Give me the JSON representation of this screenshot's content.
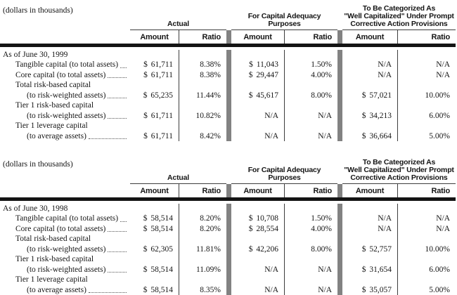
{
  "styles": {
    "rule_color": "#141414",
    "thin_line_color": "#3d3d3d",
    "bar_color": "#828282",
    "text_color": "#151515",
    "leader_color": "#555555"
  },
  "tables": [
    {
      "units_note": "(dollars in thousands)",
      "groups": [
        {
          "title_lines": [
            "Actual"
          ],
          "sub": [
            "Amount",
            "Ratio"
          ]
        },
        {
          "title_lines": [
            "For Capital Adequacy Purposes"
          ],
          "sub": [
            "Amount",
            "Ratio"
          ]
        },
        {
          "title_lines": [
            "To Be Categorized As",
            "\"Well Capitalized\" Under Prompt",
            "Corrective Action Provisions"
          ],
          "sub": [
            "Amount",
            "Ratio"
          ]
        }
      ],
      "rows": [
        {
          "indent": 0,
          "label": "As of June 30, 1999",
          "leader": false,
          "cells": [
            "",
            "",
            "",
            "",
            "",
            ""
          ]
        },
        {
          "indent": 1,
          "label": "Tangible capital (to total assets)",
          "leader": true,
          "cells": [
            "$ 61,711",
            "8.38%",
            "$ 11,043",
            "1.50%",
            "N/A",
            "N/A"
          ]
        },
        {
          "indent": 1,
          "label": "Core capital (to total assets)",
          "leader": true,
          "cells": [
            "$ 61,711",
            "8.38%",
            "$ 29,447",
            "4.00%",
            "N/A",
            "N/A"
          ]
        },
        {
          "indent": 1,
          "label": "Total risk-based capital",
          "leader": false,
          "cells": [
            "",
            "",
            "",
            "",
            "",
            ""
          ]
        },
        {
          "indent": 2,
          "label": "(to risk-weighted assets)",
          "leader": true,
          "cells": [
            "$ 65,235",
            "11.44%",
            "$ 45,617",
            "8.00%",
            "$ 57,021",
            "10.00%"
          ]
        },
        {
          "indent": 1,
          "label": "Tier 1 risk-based capital",
          "leader": false,
          "cells": [
            "",
            "",
            "",
            "",
            "",
            ""
          ]
        },
        {
          "indent": 2,
          "label": "(to risk-weighted assets)",
          "leader": true,
          "cells": [
            "$ 61,711",
            "10.82%",
            "N/A",
            "N/A",
            "$ 34,213",
            "6.00%"
          ]
        },
        {
          "indent": 1,
          "label": "Tier 1 leverage capital",
          "leader": false,
          "cells": [
            "",
            "",
            "",
            "",
            "",
            ""
          ]
        },
        {
          "indent": 2,
          "label": "(to average assets)",
          "leader": true,
          "cells": [
            "$ 61,711",
            "8.42%",
            "N/A",
            "N/A",
            "$ 36,664",
            "5.00%"
          ]
        }
      ]
    },
    {
      "units_note": "(dollars in thousands)",
      "groups": [
        {
          "title_lines": [
            "Actual"
          ],
          "sub": [
            "Amount",
            "Ratio"
          ]
        },
        {
          "title_lines": [
            "For Capital Adequacy Purposes"
          ],
          "sub": [
            "Amount",
            "Ratio"
          ]
        },
        {
          "title_lines": [
            "To Be Categorized As",
            "\"Well Capitalized\" Under Prompt",
            "Corrective Action Provisions"
          ],
          "sub": [
            "Amount",
            "Ratio"
          ]
        }
      ],
      "rows": [
        {
          "indent": 0,
          "label": "As of June 30, 1998",
          "leader": false,
          "cells": [
            "",
            "",
            "",
            "",
            "",
            ""
          ]
        },
        {
          "indent": 1,
          "label": "Tangible capital (to total assets)",
          "leader": true,
          "cells": [
            "$ 58,514",
            "8.20%",
            "$ 10,708",
            "1.50%",
            "N/A",
            "N/A"
          ]
        },
        {
          "indent": 1,
          "label": "Core capital (to total assets)",
          "leader": true,
          "cells": [
            "$ 58,514",
            "8.20%",
            "$ 28,554",
            "4.00%",
            "N/A",
            "N/A"
          ]
        },
        {
          "indent": 1,
          "label": "Total risk-based capital",
          "leader": false,
          "cells": [
            "",
            "",
            "",
            "",
            "",
            ""
          ]
        },
        {
          "indent": 2,
          "label": "(to risk-weighted assets)",
          "leader": true,
          "cells": [
            "$ 62,305",
            "11.81%",
            "$ 42,206",
            "8.00%",
            "$ 52,757",
            "10.00%"
          ]
        },
        {
          "indent": 1,
          "label": "Tier 1 risk-based capital",
          "leader": false,
          "cells": [
            "",
            "",
            "",
            "",
            "",
            ""
          ]
        },
        {
          "indent": 2,
          "label": "(to risk-weighted assets)",
          "leader": true,
          "cells": [
            "$ 58,514",
            "11.09%",
            "N/A",
            "N/A",
            "$ 31,654",
            "6.00%"
          ]
        },
        {
          "indent": 1,
          "label": "Tier 1 leverage capital",
          "leader": false,
          "cells": [
            "",
            "",
            "",
            "",
            "",
            ""
          ]
        },
        {
          "indent": 2,
          "label": "(to average assets)",
          "leader": true,
          "cells": [
            "$ 58,514",
            "8.35%",
            "N/A",
            "N/A",
            "$ 35,057",
            "5.00%"
          ]
        }
      ]
    }
  ]
}
